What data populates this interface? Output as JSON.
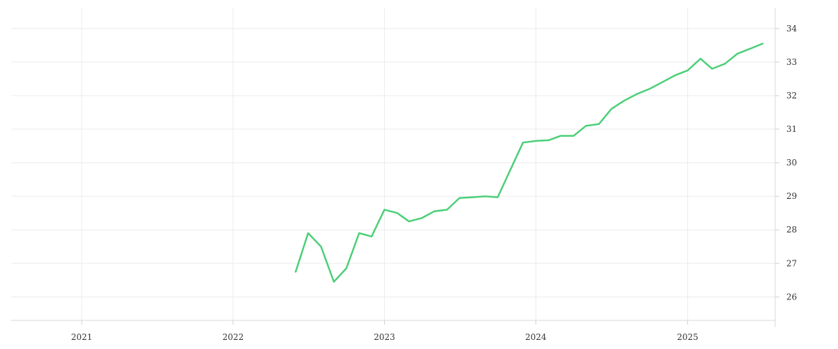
{
  "chart_data": {
    "type": "line",
    "x_axis": {
      "type": "date",
      "ticks": [
        "2021",
        "2022",
        "2023",
        "2024",
        "2025"
      ],
      "tick_dates": [
        "2021-01-01",
        "2022-01-01",
        "2023-01-01",
        "2024-01-01",
        "2025-01-01"
      ],
      "range": [
        "2020-07-15",
        "2025-07-31"
      ]
    },
    "y_axis": {
      "position": "right",
      "ticks": [
        26,
        27,
        28,
        29,
        30,
        31,
        32,
        33,
        34
      ],
      "range": [
        25.3,
        34.6
      ]
    },
    "grid": true,
    "legend": false,
    "series": [
      {
        "color": "#4ccf78",
        "points": [
          {
            "x": "2022-06-01",
            "y": 26.75
          },
          {
            "x": "2022-07-01",
            "y": 27.9
          },
          {
            "x": "2022-08-01",
            "y": 27.5
          },
          {
            "x": "2022-09-01",
            "y": 26.45
          },
          {
            "x": "2022-10-01",
            "y": 26.85
          },
          {
            "x": "2022-11-01",
            "y": 27.9
          },
          {
            "x": "2022-12-01",
            "y": 27.8
          },
          {
            "x": "2023-01-01",
            "y": 28.6
          },
          {
            "x": "2023-02-01",
            "y": 28.5
          },
          {
            "x": "2023-03-01",
            "y": 28.25
          },
          {
            "x": "2023-04-01",
            "y": 28.35
          },
          {
            "x": "2023-05-01",
            "y": 28.55
          },
          {
            "x": "2023-06-01",
            "y": 28.6
          },
          {
            "x": "2023-07-01",
            "y": 28.95
          },
          {
            "x": "2023-08-01",
            "y": 28.97
          },
          {
            "x": "2023-09-01",
            "y": 29.0
          },
          {
            "x": "2023-10-01",
            "y": 28.97
          },
          {
            "x": "2023-11-01",
            "y": 29.8
          },
          {
            "x": "2023-12-01",
            "y": 30.6
          },
          {
            "x": "2024-01-01",
            "y": 30.65
          },
          {
            "x": "2024-02-01",
            "y": 30.67
          },
          {
            "x": "2024-03-01",
            "y": 30.8
          },
          {
            "x": "2024-04-01",
            "y": 30.8
          },
          {
            "x": "2024-05-01",
            "y": 31.1
          },
          {
            "x": "2024-06-01",
            "y": 31.15
          },
          {
            "x": "2024-07-01",
            "y": 31.6
          },
          {
            "x": "2024-08-01",
            "y": 31.85
          },
          {
            "x": "2024-09-01",
            "y": 32.05
          },
          {
            "x": "2024-10-01",
            "y": 32.2
          },
          {
            "x": "2024-11-01",
            "y": 32.4
          },
          {
            "x": "2024-12-01",
            "y": 32.6
          },
          {
            "x": "2025-01-01",
            "y": 32.75
          },
          {
            "x": "2025-02-01",
            "y": 33.1
          },
          {
            "x": "2025-03-01",
            "y": 32.8
          },
          {
            "x": "2025-04-01",
            "y": 32.95
          },
          {
            "x": "2025-05-01",
            "y": 33.25
          },
          {
            "x": "2025-06-01",
            "y": 33.4
          },
          {
            "x": "2025-07-01",
            "y": 33.55
          }
        ]
      }
    ]
  }
}
